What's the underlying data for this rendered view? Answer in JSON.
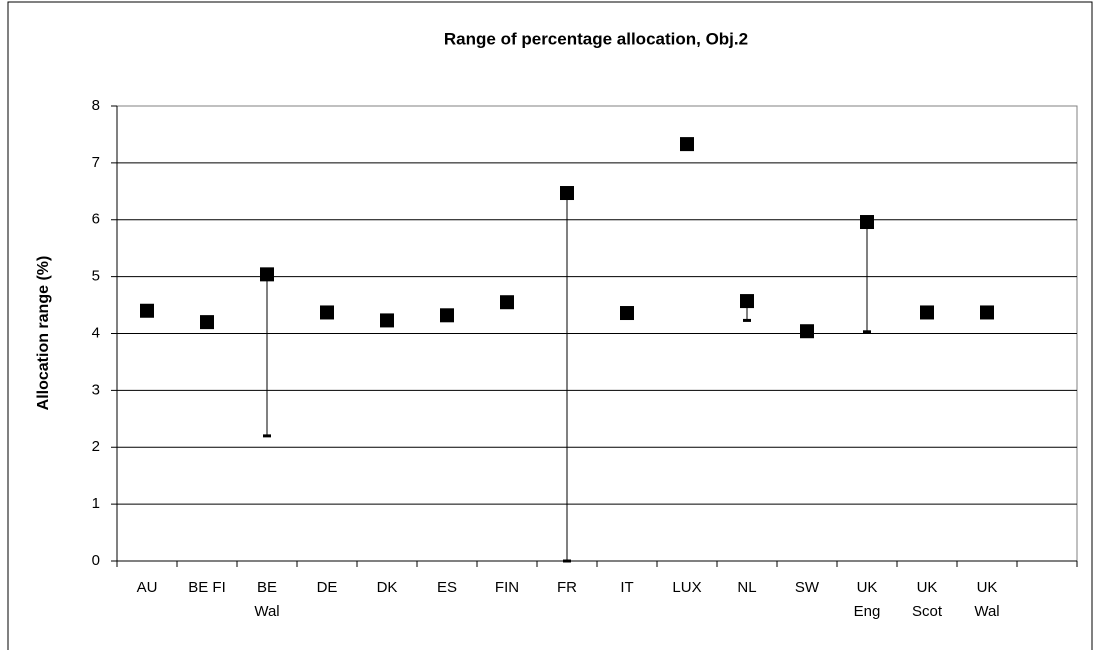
{
  "chart_data": {
    "type": "high-low",
    "title": "Range of percentage allocation, Obj.2",
    "y_label": "Allocation range (%)",
    "categories": [
      "AU",
      "BE FI",
      "BE\nWal",
      "DE",
      "DK",
      "ES",
      "FIN",
      "FR",
      "IT",
      "LUX",
      "NL",
      "SW",
      "UK\nEng",
      "UK\nScot",
      "UK\nWal",
      null
    ],
    "high": [
      4.4,
      4.2,
      5.04,
      4.37,
      4.23,
      4.32,
      4.55,
      6.47,
      4.36,
      7.33,
      4.57,
      4.04,
      5.96,
      4.37,
      4.37,
      null
    ],
    "low": [
      4.4,
      4.2,
      2.2,
      4.37,
      4.23,
      4.32,
      4.48,
      0,
      4.36,
      7.33,
      4.23,
      4.04,
      4.03,
      4.37,
      4.37,
      null
    ],
    "color": "#000000",
    "ylim": [
      0,
      8
    ],
    "yticks": [
      0,
      1,
      2,
      3,
      4,
      5,
      6,
      7,
      8
    ],
    "grid": true
  }
}
